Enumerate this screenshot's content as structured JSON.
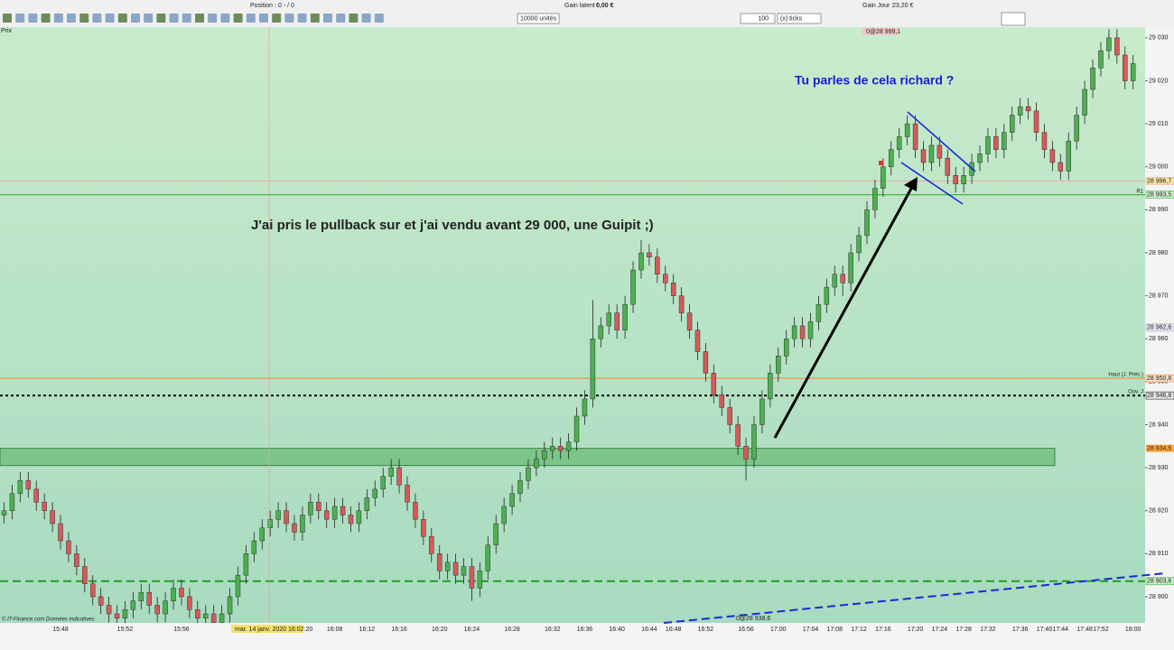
{
  "toolbar": {
    "position_label": "Position :",
    "position_value": "0 - / 0",
    "latent_label": "Gain latent :",
    "latent_value": "0,00 €",
    "day_label": "Gain Jour :",
    "day_value": "23,20 €",
    "quantity": "10000 unités",
    "period_value": "100",
    "period_unit": "(x) ticks",
    "price_tab": "Prix"
  },
  "chart_data": {
    "type": "candlestick",
    "up_color": "#4cb050",
    "down_color": "#d65a5a",
    "ylim": [
      28893.9,
      29032.5
    ],
    "yticks": [
      {
        "value": 29030,
        "label": "29 030"
      },
      {
        "value": 29020,
        "label": "29 020"
      },
      {
        "value": 29010,
        "label": "29 010"
      },
      {
        "value": 29000,
        "label": "29 000"
      },
      {
        "value": 28990,
        "label": "28 990"
      },
      {
        "value": 28980,
        "label": "28 980"
      },
      {
        "value": 28970,
        "label": "28 970"
      },
      {
        "value": 28960,
        "label": "28 960"
      },
      {
        "value": 28950,
        "label": "28 950"
      },
      {
        "value": 28940,
        "label": "28 940"
      },
      {
        "value": 28930,
        "label": "28 930"
      },
      {
        "value": 28920,
        "label": "28 920"
      },
      {
        "value": 28910,
        "label": "28 910"
      },
      {
        "value": 28900,
        "label": "28 900"
      }
    ],
    "categories": [
      null,
      null,
      null,
      null,
      null,
      null,
      null,
      "15:48",
      null,
      null,
      null,
      null,
      null,
      null,
      null,
      "15:52",
      null,
      null,
      null,
      null,
      null,
      null,
      "15:56",
      null,
      null,
      null,
      null,
      null,
      null,
      null,
      null,
      null,
      null,
      null,
      null,
      null,
      null,
      null,
      null,
      null,
      null,
      "16:08",
      null,
      null,
      null,
      "16:12",
      null,
      null,
      null,
      "16:16",
      null,
      null,
      null,
      null,
      "16:20",
      null,
      null,
      null,
      "16:24",
      null,
      null,
      null,
      null,
      "16:28",
      null,
      null,
      null,
      null,
      "16:32",
      null,
      null,
      null,
      "16:36",
      null,
      null,
      null,
      "16:40",
      null,
      null,
      null,
      "16:44",
      null,
      null,
      "16:48",
      null,
      null,
      null,
      "16:52",
      null,
      null,
      null,
      null,
      "16:56",
      null,
      null,
      null,
      "17:00",
      null,
      null,
      null,
      "17:04",
      null,
      null,
      "17:08",
      null,
      null,
      "17:12",
      null,
      null,
      "17:16",
      null,
      null,
      null,
      "17:20",
      null,
      null,
      "17:24",
      null,
      null,
      "17:28",
      null,
      null,
      "17:32",
      null,
      null,
      null,
      "17:36",
      null,
      null,
      "17:40",
      null,
      "17:44",
      null,
      null,
      "17:48",
      null,
      "17:52",
      null,
      null,
      null,
      "18:00"
    ],
    "ohlc": [
      [
        28919,
        28922,
        28917,
        28920
      ],
      [
        28920,
        28926,
        28918,
        28924
      ],
      [
        28924,
        28929,
        28922,
        28927
      ],
      [
        28927,
        28929,
        28923,
        28925
      ],
      [
        28925,
        28927,
        28920,
        28922
      ],
      [
        28922,
        28924,
        28918,
        28920
      ],
      [
        28920,
        28922,
        28915,
        28917
      ],
      [
        28917,
        28919,
        28911,
        28913
      ],
      [
        28913,
        28915,
        28908,
        28910
      ],
      [
        28910,
        28912,
        28905,
        28907
      ],
      [
        28907,
        28909,
        28901,
        28903
      ],
      [
        28903,
        28905,
        28898,
        28900
      ],
      [
        28900,
        28902,
        28896,
        28898
      ],
      [
        28898,
        28900,
        28894,
        28896
      ],
      [
        28896,
        28898,
        28893,
        28895
      ],
      [
        28895,
        28899,
        28893,
        28897
      ],
      [
        28897,
        28901,
        28895,
        28899
      ],
      [
        28899,
        28903,
        28897,
        28901
      ],
      [
        28901,
        28903,
        28896,
        28898
      ],
      [
        28898,
        28900,
        28894,
        28896
      ],
      [
        28896,
        28901,
        28894,
        28899
      ],
      [
        28899,
        28904,
        28897,
        28902
      ],
      [
        28902,
        28904,
        28898,
        28900
      ],
      [
        28900,
        28902,
        28895,
        28897
      ],
      [
        28897,
        28899,
        28893,
        28895
      ],
      [
        28895,
        28898,
        28893,
        28896
      ],
      [
        28896,
        28898,
        28892,
        28894
      ],
      [
        28894,
        28898,
        28892,
        28896
      ],
      [
        28896,
        28902,
        28894,
        28900
      ],
      [
        28900,
        28907,
        28898,
        28905
      ],
      [
        28905,
        28912,
        28903,
        28910
      ],
      [
        28910,
        28915,
        28908,
        28913
      ],
      [
        28913,
        28918,
        28911,
        28916
      ],
      [
        28916,
        28920,
        28914,
        28918
      ],
      [
        28918,
        28922,
        28916,
        28920
      ],
      [
        28920,
        28922,
        28915,
        28917
      ],
      [
        28917,
        28919,
        28913,
        28915
      ],
      [
        28915,
        28921,
        28913,
        28919
      ],
      [
        28919,
        28924,
        28917,
        28922
      ],
      [
        28922,
        28924,
        28918,
        28920
      ],
      [
        28920,
        28922,
        28916,
        28918
      ],
      [
        28918,
        28923,
        28916,
        28921
      ],
      [
        28921,
        28923,
        28917,
        28919
      ],
      [
        28919,
        28921,
        28915,
        28917
      ],
      [
        28917,
        28922,
        28915,
        28920
      ],
      [
        28920,
        28925,
        28918,
        28923
      ],
      [
        28923,
        28927,
        28921,
        28925
      ],
      [
        28925,
        28930,
        28923,
        28928
      ],
      [
        28928,
        28932,
        28926,
        28930
      ],
      [
        28930,
        28932,
        28924,
        28926
      ],
      [
        28926,
        28928,
        28920,
        28922
      ],
      [
        28922,
        28924,
        28916,
        28918
      ],
      [
        28918,
        28920,
        28912,
        28914
      ],
      [
        28914,
        28916,
        28908,
        28910
      ],
      [
        28910,
        28912,
        28904,
        28906
      ],
      [
        28906,
        28910,
        28904,
        28908
      ],
      [
        28908,
        28910,
        28903,
        28905
      ],
      [
        28905,
        28909,
        28903,
        28907
      ],
      [
        28907,
        28909,
        28899,
        28902
      ],
      [
        28902,
        28908,
        28900,
        28906
      ],
      [
        28906,
        28914,
        28904,
        28912
      ],
      [
        28912,
        28919,
        28910,
        28917
      ],
      [
        28917,
        28923,
        28915,
        28921
      ],
      [
        28921,
        28926,
        28919,
        28924
      ],
      [
        28924,
        28929,
        28922,
        28927
      ],
      [
        28927,
        28932,
        28925,
        28930
      ],
      [
        28930,
        28934,
        28928,
        28932
      ],
      [
        28932,
        28936,
        28930,
        28934
      ],
      [
        28934,
        28937,
        28932,
        28935
      ],
      [
        28935,
        28937,
        28932,
        28934
      ],
      [
        28934,
        28938,
        28932,
        28936
      ],
      [
        28936,
        28944,
        28934,
        28942
      ],
      [
        28942,
        28948,
        28940,
        28946
      ],
      [
        28946,
        28969,
        28944,
        28960
      ],
      [
        28960,
        28965,
        28958,
        28963
      ],
      [
        28963,
        28968,
        28961,
        28966
      ],
      [
        28966,
        28968,
        28960,
        28962
      ],
      [
        28962,
        28970,
        28960,
        28968
      ],
      [
        28968,
        28978,
        28966,
        28976
      ],
      [
        28976,
        28983,
        28974,
        28980
      ],
      [
        28980,
        28982,
        28977,
        28979
      ],
      [
        28979,
        28981,
        28973,
        28975
      ],
      [
        28975,
        28977,
        28971,
        28973
      ],
      [
        28973,
        28975,
        28968,
        28970
      ],
      [
        28970,
        28972,
        28964,
        28966
      ],
      [
        28966,
        28968,
        28960,
        28962
      ],
      [
        28962,
        28964,
        28955,
        28957
      ],
      [
        28957,
        28959,
        28950,
        28952
      ],
      [
        28952,
        28954,
        28945,
        28947
      ],
      [
        28947,
        28949,
        28942,
        28944
      ],
      [
        28944,
        28946,
        28938,
        28940
      ],
      [
        28940,
        28942,
        28933,
        28935
      ],
      [
        28935,
        28937,
        28927,
        28932
      ],
      [
        28932,
        28942,
        28930,
        28940
      ],
      [
        28940,
        28948,
        28938,
        28946
      ],
      [
        28946,
        28954,
        28944,
        28952
      ],
      [
        28952,
        28958,
        28950,
        28956
      ],
      [
        28956,
        28962,
        28954,
        28960
      ],
      [
        28960,
        28965,
        28958,
        28963
      ],
      [
        28963,
        28965,
        28958,
        28960
      ],
      [
        28960,
        28966,
        28958,
        28964
      ],
      [
        28964,
        28970,
        28962,
        28968
      ],
      [
        28968,
        28974,
        28966,
        28972
      ],
      [
        28972,
        28977,
        28970,
        28975
      ],
      [
        28975,
        28977,
        28970,
        28973
      ],
      [
        28973,
        28982,
        28971,
        28980
      ],
      [
        28980,
        28986,
        28978,
        28984
      ],
      [
        28984,
        28992,
        28982,
        28990
      ],
      [
        28990,
        28997,
        28988,
        28995
      ],
      [
        28995,
        29002,
        28993,
        29000
      ],
      [
        29000,
        29006,
        28998,
        29004
      ],
      [
        29004,
        29009,
        29002,
        29007
      ],
      [
        29007,
        29012,
        29005,
        29010
      ],
      [
        29010,
        29012,
        29002,
        29004
      ],
      [
        29004,
        29006,
        28999,
        29001
      ],
      [
        29001,
        29007,
        28999,
        29005
      ],
      [
        29005,
        29007,
        29000,
        29002
      ],
      [
        29002,
        29004,
        28996,
        28998
      ],
      [
        28998,
        29000,
        28994,
        28996
      ],
      [
        28996,
        29000,
        28994,
        28998
      ],
      [
        28998,
        29003,
        28996,
        29001
      ],
      [
        29001,
        29005,
        28999,
        29003
      ],
      [
        29003,
        29009,
        29001,
        29007
      ],
      [
        29007,
        29009,
        29002,
        29004
      ],
      [
        29004,
        29010,
        29002,
        29008
      ],
      [
        29008,
        29014,
        29006,
        29012
      ],
      [
        29012,
        29016,
        29010,
        29014
      ],
      [
        29014,
        29016,
        29011,
        29013
      ],
      [
        29013,
        29015,
        29006,
        29008
      ],
      [
        29008,
        29010,
        29002,
        29004
      ],
      [
        29004,
        29006,
        28999,
        29001
      ],
      [
        29001,
        29003,
        28997,
        28999
      ],
      [
        28999,
        29008,
        28997,
        29006
      ],
      [
        29006,
        29014,
        29004,
        29012
      ],
      [
        29012,
        29020,
        29010,
        29018
      ],
      [
        29018,
        29025,
        29016,
        29023
      ],
      [
        29023,
        29029,
        29021,
        29027
      ],
      [
        29027,
        29032,
        29025,
        29030
      ],
      [
        29030,
        29032,
        29024,
        29026
      ],
      [
        29026,
        29028,
        29018,
        29020
      ],
      [
        29020,
        29026,
        29018,
        29024
      ]
    ],
    "levels": [
      {
        "value": 28996.7,
        "label": "28 996,7",
        "color": "#e8a8a8",
        "style": "solid",
        "box": "#f5e6a0"
      },
      {
        "value": 28993.5,
        "label": "28 993,5",
        "name": "R1",
        "color": "#2aa52a",
        "style": "solid",
        "box": "#cfeecf"
      },
      {
        "value": 28950.8,
        "label": "28 950,8",
        "name": "Haut (J. Préc.)",
        "color": "#ff7f27",
        "style": "solid",
        "box": "#fde0c8"
      },
      {
        "value": 28946.8,
        "label": "28 946,8",
        "name": "Ouv. J",
        "color": "#000000",
        "style": "dotted",
        "box": "#e8e8e8"
      },
      {
        "value": 28903.6,
        "label": "28 903,6",
        "color": "#1f9e1f",
        "style": "dashed",
        "box": "#cfeecf"
      }
    ],
    "price_boxes": [
      {
        "value": 28962.6,
        "label": "28 962,6"
      }
    ],
    "zone": {
      "top": {
        "value": 28934.5,
        "label": "28 934,5"
      },
      "bottom": 28930.5,
      "color": "#7cc68a"
    },
    "annotations": [
      "J'ai pris le pullback sur et j'ai vendu avant 29 000, une Guipit ;)",
      "Tu parles de cela richard ?"
    ],
    "markers": [
      "0@28 999,1",
      "0@28 938,6"
    ],
    "crosshair_label": "mar. 14 janv. 2020 16:02:20",
    "footer": "© IT-Finance.com Données indicatives"
  }
}
